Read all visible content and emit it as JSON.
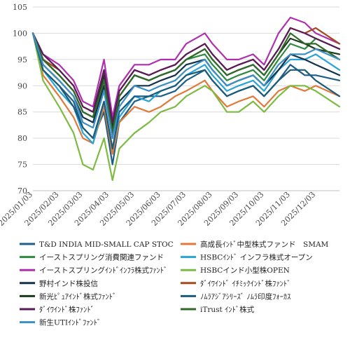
{
  "chart_data": {
    "type": "line",
    "title": "",
    "xlabel": "",
    "ylabel": "",
    "x_ticks": [
      "2025/01/03",
      "2025/02/03",
      "2025/03/03",
      "2025/04/03",
      "2025/05/03",
      "2025/06/03",
      "2025/07/03",
      "2025/08/03",
      "2025/09/03",
      "2025/10/03",
      "2025/11/03",
      "2025/12/03"
    ],
    "y_ticks": [
      70,
      75,
      80,
      85,
      90,
      95,
      100,
      105
    ],
    "ylim": [
      70,
      105
    ],
    "grid": "horizontal",
    "legend_position": "bottom",
    "series": [
      {
        "name": "T&D INDIA MID-SMALL CAP STOC",
        "color": "#1f5f86",
        "x": [
          "2025/01/03",
          "2025/01/15",
          "2025/02/03",
          "2025/02/20",
          "2025/03/03",
          "2025/03/15",
          "2025/03/28",
          "2025/04/07",
          "2025/04/15",
          "2025/05/03",
          "2025/05/20",
          "2025/06/03",
          "2025/06/20",
          "2025/07/03",
          "2025/07/25",
          "2025/08/03",
          "2025/08/20",
          "2025/09/03",
          "2025/09/20",
          "2025/10/03",
          "2025/10/20",
          "2025/11/03",
          "2025/11/20",
          "2025/12/03",
          "2025/12/31"
        ],
        "values": [
          100,
          93,
          90,
          87,
          82,
          80,
          85,
          75,
          83,
          87,
          88,
          88,
          89,
          91,
          93,
          91,
          88,
          89,
          90,
          88,
          91,
          94,
          92,
          92,
          91
        ]
      },
      {
        "name": "高成長ｲﾝﾄﾞ中型株式ファンド　SMAM",
        "color": "#e07a3a",
        "x": [
          "2025/01/03",
          "2025/01/15",
          "2025/02/03",
          "2025/02/20",
          "2025/03/03",
          "2025/03/15",
          "2025/03/28",
          "2025/04/07",
          "2025/04/15",
          "2025/05/03",
          "2025/05/20",
          "2025/06/03",
          "2025/06/20",
          "2025/07/03",
          "2025/07/25",
          "2025/08/03",
          "2025/08/20",
          "2025/09/03",
          "2025/09/20",
          "2025/10/03",
          "2025/10/20",
          "2025/11/03",
          "2025/11/20",
          "2025/12/03",
          "2025/12/31"
        ],
        "values": [
          100,
          92,
          88,
          84,
          80,
          79,
          86,
          77,
          83,
          86,
          85,
          86,
          88,
          89,
          91,
          89,
          86,
          87,
          88,
          86,
          89,
          90,
          89,
          90,
          88
        ]
      },
      {
        "name": "イーストスプリング消費関連ファンド",
        "color": "#2e8b3e",
        "x": [
          "2025/01/03",
          "2025/01/15",
          "2025/02/03",
          "2025/02/20",
          "2025/03/03",
          "2025/03/15",
          "2025/03/28",
          "2025/04/07",
          "2025/04/15",
          "2025/05/03",
          "2025/05/20",
          "2025/06/03",
          "2025/06/20",
          "2025/07/03",
          "2025/07/25",
          "2025/08/03",
          "2025/08/20",
          "2025/09/03",
          "2025/09/20",
          "2025/10/03",
          "2025/10/20",
          "2025/11/03",
          "2025/11/20",
          "2025/12/03",
          "2025/12/31"
        ],
        "values": [
          100,
          95,
          92,
          89,
          85,
          84,
          91,
          81,
          88,
          92,
          91,
          92,
          93,
          95,
          96,
          94,
          91,
          92,
          93,
          91,
          95,
          98,
          97,
          99,
          97
        ]
      },
      {
        "name": "HSBCｲﾝﾄﾞ インフラ株式オープン",
        "color": "#2aa3d6",
        "x": [
          "2025/01/03",
          "2025/01/15",
          "2025/02/03",
          "2025/02/20",
          "2025/03/03",
          "2025/03/15",
          "2025/03/28",
          "2025/04/07",
          "2025/04/15",
          "2025/05/03",
          "2025/05/20",
          "2025/06/03",
          "2025/06/20",
          "2025/07/03",
          "2025/07/25",
          "2025/08/03",
          "2025/08/20",
          "2025/09/03",
          "2025/09/20",
          "2025/10/03",
          "2025/10/20",
          "2025/11/03",
          "2025/11/20",
          "2025/12/03",
          "2025/12/31"
        ],
        "values": [
          100,
          93,
          89,
          86,
          81,
          79,
          87,
          78,
          84,
          88,
          87,
          89,
          90,
          92,
          94,
          92,
          89,
          90,
          91,
          89,
          93,
          95,
          95,
          96,
          93
        ]
      },
      {
        "name": "イーストスプリングｲﾝﾄﾞｲﾝﾌﾗ株式ﾌｧﾝﾄﾞ",
        "color": "#b02fb0",
        "x": [
          "2025/01/03",
          "2025/01/15",
          "2025/02/03",
          "2025/02/20",
          "2025/03/03",
          "2025/03/15",
          "2025/03/28",
          "2025/04/07",
          "2025/04/15",
          "2025/05/03",
          "2025/05/20",
          "2025/06/03",
          "2025/06/20",
          "2025/07/03",
          "2025/07/25",
          "2025/08/03",
          "2025/08/20",
          "2025/09/03",
          "2025/09/20",
          "2025/10/03",
          "2025/10/20",
          "2025/11/03",
          "2025/11/20",
          "2025/12/03",
          "2025/12/31"
        ],
        "values": [
          100,
          96,
          94,
          91,
          87,
          86,
          95,
          84,
          90,
          94,
          94,
          95,
          95,
          98,
          100,
          98,
          95,
          95,
          96,
          94,
          100,
          103,
          102,
          100,
          98
        ]
      },
      {
        "name": "HSBCインド小型株OPEN",
        "color": "#7dbb42",
        "x": [
          "2025/01/03",
          "2025/01/15",
          "2025/02/03",
          "2025/02/20",
          "2025/03/03",
          "2025/03/15",
          "2025/03/28",
          "2025/04/07",
          "2025/04/15",
          "2025/05/03",
          "2025/05/20",
          "2025/06/03",
          "2025/06/20",
          "2025/07/03",
          "2025/07/25",
          "2025/08/03",
          "2025/08/20",
          "2025/09/03",
          "2025/09/20",
          "2025/10/03",
          "2025/10/20",
          "2025/11/03",
          "2025/11/20",
          "2025/12/03",
          "2025/12/31"
        ],
        "values": [
          100,
          91,
          86,
          81,
          75,
          74,
          80,
          72,
          78,
          81,
          83,
          85,
          86,
          88,
          90,
          89,
          85,
          85,
          87,
          85,
          88,
          90,
          90,
          89,
          86
        ]
      },
      {
        "name": "野村インド株投信",
        "color": "#12324a",
        "x": [
          "2025/01/03",
          "2025/01/15",
          "2025/02/03",
          "2025/02/20",
          "2025/03/03",
          "2025/03/15",
          "2025/03/28",
          "2025/04/07",
          "2025/04/15",
          "2025/05/03",
          "2025/05/20",
          "2025/06/03",
          "2025/06/20",
          "2025/07/03",
          "2025/07/25",
          "2025/08/03",
          "2025/08/20",
          "2025/09/03",
          "2025/09/20",
          "2025/10/03",
          "2025/10/20",
          "2025/11/03",
          "2025/11/20",
          "2025/12/03",
          "2025/12/31"
        ],
        "values": [
          100,
          94,
          91,
          88,
          84,
          83,
          90,
          80,
          87,
          90,
          90,
          91,
          92,
          94,
          95,
          93,
          90,
          91,
          92,
          90,
          93,
          96,
          95,
          94,
          92
        ]
      },
      {
        "name": "ﾀﾞｲﾜｲﾝﾄﾞ ｲﾁﾐｯｸｲﾝﾄﾞ株ﾌｧﾝﾄﾞ",
        "color": "#a54a1c",
        "x": [
          "2025/01/03",
          "2025/01/15",
          "2025/02/03",
          "2025/02/20",
          "2025/03/03",
          "2025/03/15",
          "2025/03/28",
          "2025/04/07",
          "2025/04/15",
          "2025/05/03",
          "2025/05/20",
          "2025/06/03",
          "2025/06/20",
          "2025/07/03",
          "2025/07/25",
          "2025/08/03",
          "2025/08/20",
          "2025/09/03",
          "2025/09/20",
          "2025/10/03",
          "2025/10/20",
          "2025/11/03",
          "2025/11/20",
          "2025/12/03",
          "2025/12/31"
        ],
        "values": [
          100,
          95,
          93,
          90,
          86,
          85,
          93,
          82,
          89,
          93,
          92,
          93,
          94,
          96,
          98,
          96,
          93,
          94,
          95,
          93,
          97,
          101,
          100,
          101,
          98
        ]
      },
      {
        "name": "新光ﾋﾟｭｱｲﾝﾄﾞ株式ﾌｧﾝﾄﾞ",
        "color": "#1d3a1d",
        "x": [
          "2025/01/03",
          "2025/01/15",
          "2025/02/03",
          "2025/02/20",
          "2025/03/03",
          "2025/03/15",
          "2025/03/28",
          "2025/04/07",
          "2025/04/15",
          "2025/05/03",
          "2025/05/20",
          "2025/06/03",
          "2025/06/20",
          "2025/07/03",
          "2025/07/25",
          "2025/08/03",
          "2025/08/20",
          "2025/09/03",
          "2025/09/20",
          "2025/10/03",
          "2025/10/20",
          "2025/11/03",
          "2025/11/20",
          "2025/12/03",
          "2025/12/31"
        ],
        "values": [
          100,
          95,
          92,
          89,
          85,
          84,
          92,
          82,
          88,
          92,
          91,
          92,
          93,
          95,
          97,
          95,
          92,
          93,
          94,
          92,
          96,
          99,
          98,
          97,
          96
        ]
      },
      {
        "name": "ﾉﾑﾗｱｼﾞｱｼﾘｰｽﾞ ﾉﾑﾗ印度ﾌｫｰｶｽ",
        "color": "#1a5a7a",
        "x": [
          "2025/01/03",
          "2025/01/15",
          "2025/02/03",
          "2025/02/20",
          "2025/03/03",
          "2025/03/15",
          "2025/03/28",
          "2025/04/07",
          "2025/04/15",
          "2025/05/03",
          "2025/05/20",
          "2025/06/03",
          "2025/06/20",
          "2025/07/03",
          "2025/07/25",
          "2025/08/03",
          "2025/08/20",
          "2025/09/03",
          "2025/09/20",
          "2025/10/03",
          "2025/10/20",
          "2025/11/03",
          "2025/11/20",
          "2025/12/03",
          "2025/12/31"
        ],
        "values": [
          100,
          93,
          90,
          86,
          82,
          80,
          87,
          78,
          85,
          88,
          88,
          89,
          90,
          92,
          93,
          91,
          88,
          89,
          90,
          88,
          91,
          93,
          93,
          91,
          88
        ]
      },
      {
        "name": "ﾀﾞｲﾜｲﾝﾄﾞ株ﾌｧﾝﾄﾞ",
        "color": "#5a1a5a",
        "x": [
          "2025/01/03",
          "2025/01/15",
          "2025/02/03",
          "2025/02/20",
          "2025/03/03",
          "2025/03/15",
          "2025/03/28",
          "2025/04/07",
          "2025/04/15",
          "2025/05/03",
          "2025/05/20",
          "2025/06/03",
          "2025/06/20",
          "2025/07/03",
          "2025/07/25",
          "2025/08/03",
          "2025/08/20",
          "2025/09/03",
          "2025/09/20",
          "2025/10/03",
          "2025/10/20",
          "2025/11/03",
          "2025/11/20",
          "2025/12/03",
          "2025/12/31"
        ],
        "values": [
          100,
          96,
          93,
          90,
          86,
          85,
          93,
          83,
          89,
          93,
          92,
          93,
          94,
          96,
          98,
          96,
          93,
          94,
          95,
          93,
          97,
          101,
          100,
          99,
          97
        ]
      },
      {
        "name": "iTrust ｲﾝﾄﾞ株式",
        "color": "#2f6a2a",
        "x": [
          "2025/01/03",
          "2025/01/15",
          "2025/02/03",
          "2025/02/20",
          "2025/03/03",
          "2025/03/15",
          "2025/03/28",
          "2025/04/07",
          "2025/04/15",
          "2025/05/03",
          "2025/05/20",
          "2025/06/03",
          "2025/06/20",
          "2025/07/03",
          "2025/07/25",
          "2025/08/03",
          "2025/08/20",
          "2025/09/03",
          "2025/09/20",
          "2025/10/03",
          "2025/10/20",
          "2025/11/03",
          "2025/11/20",
          "2025/12/03",
          "2025/12/31"
        ],
        "values": [
          100,
          95,
          92,
          89,
          85,
          84,
          91,
          81,
          88,
          92,
          91,
          92,
          93,
          95,
          97,
          95,
          92,
          93,
          94,
          92,
          96,
          100,
          98,
          98,
          95
        ]
      },
      {
        "name": "新生UTIｲﾝﾄﾞﾌｧﾝﾄﾞ",
        "color": "#3b8fc4",
        "x": [
          "2025/01/03",
          "2025/01/15",
          "2025/02/03",
          "2025/02/20",
          "2025/03/03",
          "2025/03/15",
          "2025/03/28",
          "2025/04/07",
          "2025/04/15",
          "2025/05/03",
          "2025/05/20",
          "2025/06/03",
          "2025/06/20",
          "2025/07/03",
          "2025/07/25",
          "2025/08/03",
          "2025/08/20",
          "2025/09/03",
          "2025/09/20",
          "2025/10/03",
          "2025/10/20",
          "2025/11/03",
          "2025/11/20",
          "2025/12/03",
          "2025/12/31"
        ],
        "values": [
          100,
          94,
          91,
          88,
          83,
          82,
          89,
          80,
          86,
          90,
          89,
          90,
          91,
          93,
          95,
          93,
          90,
          91,
          92,
          90,
          94,
          96,
          96,
          97,
          95
        ]
      }
    ]
  }
}
